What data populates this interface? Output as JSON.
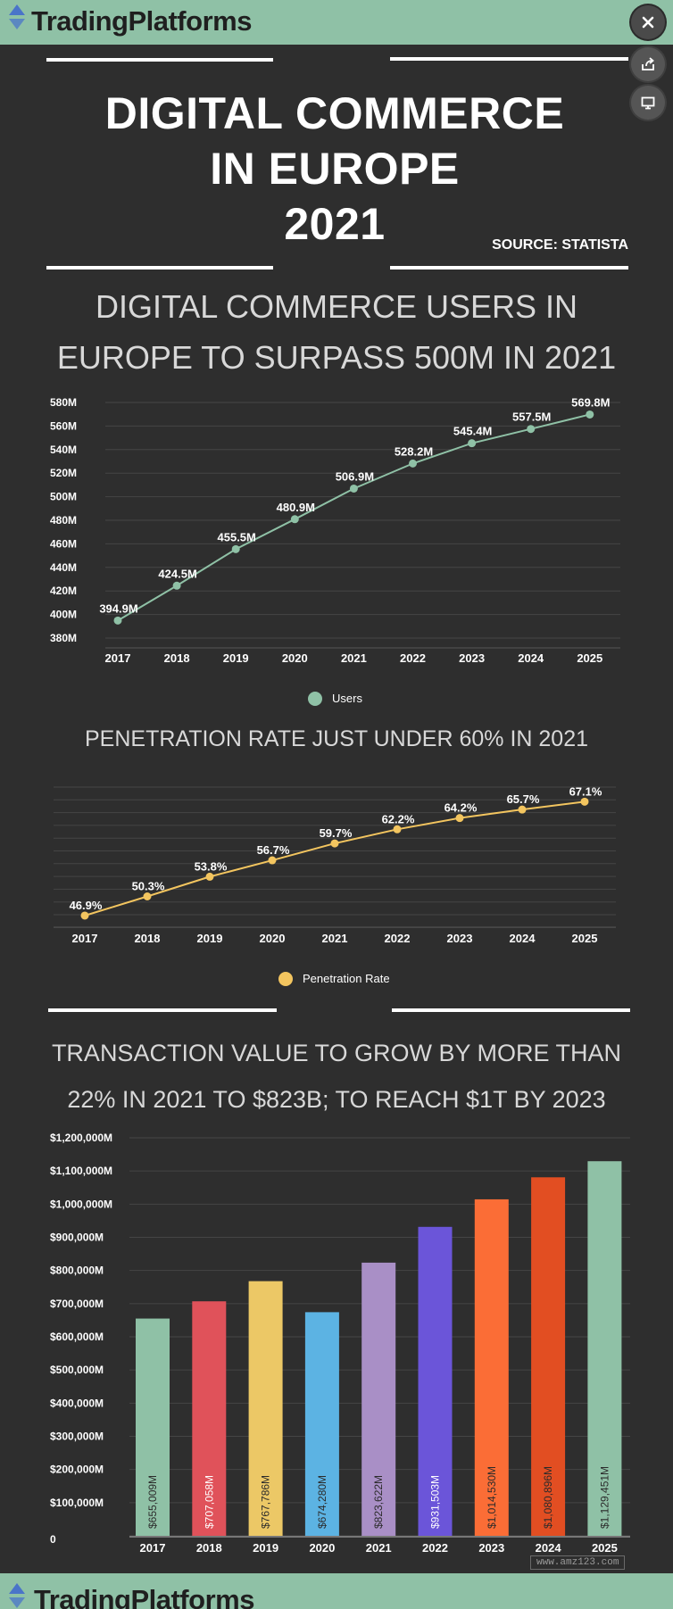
{
  "brand": {
    "name": "TradingPlatforms"
  },
  "header": {
    "title_line1": "DIGITAL COMMERCE",
    "title_line2": "IN EUROPE",
    "title_line3": "2021",
    "source": "SOURCE: STATISTA"
  },
  "section1": {
    "title_line1": "DIGITAL COMMERCE USERS IN",
    "title_line2": "EUROPE TO SURPASS 500M IN 2021"
  },
  "section2": {
    "title": "PENETRATION RATE JUST UNDER 60% IN 2021"
  },
  "section3": {
    "title_line1": "TRANSACTION VALUE TO GROW BY MORE THAN",
    "title_line2": "22% IN 2021 TO $823B; TO REACH $1T BY 2023"
  },
  "watermark": "www.amz123.com",
  "colors": {
    "brand_bar": "#8fc1a6",
    "background": "#2e2e2e",
    "users_line": "#8fc1a6",
    "penetration_line": "#f3c55f"
  },
  "icons": {
    "close": "close-icon",
    "share": "share-icon",
    "present": "present-icon"
  },
  "chart_data": [
    {
      "type": "line",
      "categories": [
        "2017",
        "2018",
        "2019",
        "2020",
        "2021",
        "2022",
        "2023",
        "2024",
        "2025"
      ],
      "series": [
        {
          "name": "Users",
          "values": [
            394.9,
            424.5,
            455.5,
            480.9,
            506.9,
            528.2,
            545.4,
            557.5,
            569.8
          ]
        }
      ],
      "data_labels": [
        "394.9M",
        "424.5M",
        "455.5M",
        "480.9M",
        "506.9M",
        "528.2M",
        "545.4M",
        "557.5M",
        "569.8M"
      ],
      "y_ticks": [
        "380M",
        "400M",
        "420M",
        "440M",
        "460M",
        "480M",
        "500M",
        "520M",
        "540M",
        "560M",
        "580M"
      ],
      "ylim": [
        380,
        580
      ],
      "grid": true,
      "legend": "bottom",
      "color": "#8fc1a6"
    },
    {
      "type": "line",
      "categories": [
        "2017",
        "2018",
        "2019",
        "2020",
        "2021",
        "2022",
        "2023",
        "2024",
        "2025"
      ],
      "series": [
        {
          "name": "Penetration Rate",
          "values": [
            46.9,
            50.3,
            53.8,
            56.7,
            59.7,
            62.2,
            64.2,
            65.7,
            67.1
          ]
        }
      ],
      "data_labels": [
        "46.9%",
        "50.3%",
        "53.8%",
        "56.7%",
        "59.7%",
        "62.2%",
        "64.2%",
        "65.7%",
        "67.1%"
      ],
      "ylim": [
        45,
        70
      ],
      "grid": true,
      "legend": "bottom",
      "color": "#f3c55f"
    },
    {
      "type": "bar",
      "categories": [
        "2017",
        "2018",
        "2019",
        "2020",
        "2021",
        "2022",
        "2023",
        "2024",
        "2025"
      ],
      "values": [
        655009,
        707058,
        767786,
        674280,
        823622,
        931503,
        1014530,
        1080896,
        1129451
      ],
      "data_labels": [
        "$655,009M",
        "$707,058M",
        "$767,786M",
        "$674,280M",
        "$823,622M",
        "$931,503M",
        "$1,014,530M",
        "$1,080,896M",
        "$1,129,451M"
      ],
      "bar_colors": [
        "#8fc1a6",
        "#e0525a",
        "#ecc866",
        "#5cb3e3",
        "#a98fc6",
        "#6b55d9",
        "#fb6d36",
        "#e24e22",
        "#8fc1a6"
      ],
      "label_colors": [
        "#2b2b2b",
        "#ffffff",
        "#2b2b2b",
        "#2b2b2b",
        "#2b2b2b",
        "#ffffff",
        "#2b2b2b",
        "#2b2b2b",
        "#2b2b2b"
      ],
      "y_ticks": [
        "0",
        "$100,000M",
        "$200,000M",
        "$300,000M",
        "$400,000M",
        "$500,000M",
        "$600,000M",
        "$700,000M",
        "$800,000M",
        "$900,000M",
        "$1,000,000M",
        "$1,100,000M",
        "$1,200,000M"
      ],
      "ylim": [
        0,
        1200000
      ],
      "grid": true
    }
  ]
}
